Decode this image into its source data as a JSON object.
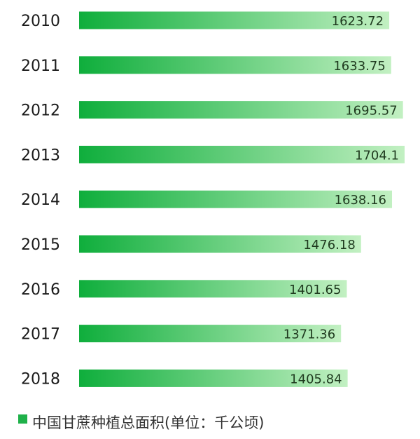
{
  "chart_data": {
    "type": "bar",
    "orientation": "horizontal",
    "categories": [
      "2010",
      "2011",
      "2012",
      "2013",
      "2014",
      "2015",
      "2016",
      "2017",
      "2018"
    ],
    "series": [
      {
        "name": "中国甘蔗种植总面积(单位：千公顷)",
        "values": [
          1623.72,
          1633.75,
          1695.57,
          1704.1,
          1638.16,
          1476.18,
          1401.65,
          1371.36,
          1405.84
        ],
        "value_labels": [
          "1623.72",
          "1633.75",
          "1695.57",
          "1704.1",
          "1638.16",
          "1476.18",
          "1401.65",
          "1371.36",
          "1405.84"
        ]
      }
    ],
    "xlim": [
      0,
      1704.1
    ],
    "grid": false,
    "legend": "bottom-left",
    "colors": {
      "bar_start": "#0fae3c",
      "bar_end": "#c2f0c2",
      "legend_swatch": "#1fb14a"
    }
  }
}
